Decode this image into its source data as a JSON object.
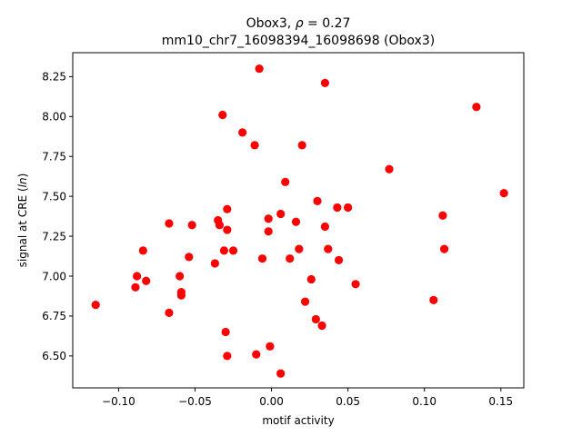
{
  "chart_data": {
    "type": "scatter",
    "title_line1_prefix": "Obox3, ",
    "title_line1_rho": "ρ",
    "title_line1_suffix": " = 0.27",
    "title_line2": "mm10_chr7_16098394_16098698 (Obox3)",
    "xlabel": "motif activity",
    "ylabel_prefix": "signal at CRE (",
    "ylabel_ln": "ln",
    "ylabel_suffix": ")",
    "xlim": [
      -0.13,
      0.165
    ],
    "ylim": [
      6.3,
      8.4
    ],
    "xticks": [
      -0.1,
      -0.05,
      0.0,
      0.05,
      0.1,
      0.15
    ],
    "xtick_labels": [
      "−0.10",
      "−0.05",
      "0.00",
      "0.05",
      "0.10",
      "0.15"
    ],
    "yticks": [
      6.5,
      6.75,
      7.0,
      7.25,
      7.5,
      7.75,
      8.0,
      8.25
    ],
    "ytick_labels": [
      "6.50",
      "6.75",
      "7.00",
      "7.25",
      "7.50",
      "7.75",
      "8.00",
      "8.25"
    ],
    "marker_color": "#ff0000",
    "points": [
      {
        "x": -0.115,
        "y": 6.82
      },
      {
        "x": -0.089,
        "y": 6.93
      },
      {
        "x": -0.088,
        "y": 7.0
      },
      {
        "x": -0.084,
        "y": 7.16
      },
      {
        "x": -0.082,
        "y": 6.97
      },
      {
        "x": -0.067,
        "y": 7.33
      },
      {
        "x": -0.067,
        "y": 6.77
      },
      {
        "x": -0.06,
        "y": 7.0
      },
      {
        "x": -0.059,
        "y": 6.9
      },
      {
        "x": -0.059,
        "y": 6.88
      },
      {
        "x": -0.054,
        "y": 7.12
      },
      {
        "x": -0.052,
        "y": 7.32
      },
      {
        "x": -0.037,
        "y": 7.08
      },
      {
        "x": -0.035,
        "y": 7.35
      },
      {
        "x": -0.034,
        "y": 7.32
      },
      {
        "x": -0.032,
        "y": 8.01
      },
      {
        "x": -0.031,
        "y": 7.16
      },
      {
        "x": -0.03,
        "y": 6.65
      },
      {
        "x": -0.029,
        "y": 7.42
      },
      {
        "x": -0.029,
        "y": 7.29
      },
      {
        "x": -0.029,
        "y": 6.5
      },
      {
        "x": -0.025,
        "y": 7.16
      },
      {
        "x": -0.019,
        "y": 7.9
      },
      {
        "x": -0.011,
        "y": 7.82
      },
      {
        "x": -0.01,
        "y": 6.51
      },
      {
        "x": -0.008,
        "y": 8.3
      },
      {
        "x": -0.006,
        "y": 7.11
      },
      {
        "x": -0.002,
        "y": 7.36
      },
      {
        "x": -0.002,
        "y": 7.28
      },
      {
        "x": -0.001,
        "y": 6.56
      },
      {
        "x": 0.006,
        "y": 7.39
      },
      {
        "x": 0.006,
        "y": 6.39
      },
      {
        "x": 0.009,
        "y": 7.59
      },
      {
        "x": 0.012,
        "y": 7.11
      },
      {
        "x": 0.016,
        "y": 7.34
      },
      {
        "x": 0.018,
        "y": 7.17
      },
      {
        "x": 0.02,
        "y": 7.82
      },
      {
        "x": 0.022,
        "y": 6.84
      },
      {
        "x": 0.026,
        "y": 6.98
      },
      {
        "x": 0.029,
        "y": 6.73
      },
      {
        "x": 0.03,
        "y": 7.47
      },
      {
        "x": 0.033,
        "y": 6.69
      },
      {
        "x": 0.035,
        "y": 8.21
      },
      {
        "x": 0.035,
        "y": 7.31
      },
      {
        "x": 0.037,
        "y": 7.17
      },
      {
        "x": 0.043,
        "y": 7.43
      },
      {
        "x": 0.044,
        "y": 7.1
      },
      {
        "x": 0.05,
        "y": 7.43
      },
      {
        "x": 0.055,
        "y": 6.95
      },
      {
        "x": 0.077,
        "y": 7.67
      },
      {
        "x": 0.106,
        "y": 6.85
      },
      {
        "x": 0.112,
        "y": 7.38
      },
      {
        "x": 0.113,
        "y": 7.17
      },
      {
        "x": 0.134,
        "y": 8.06
      },
      {
        "x": 0.152,
        "y": 7.52
      }
    ]
  }
}
